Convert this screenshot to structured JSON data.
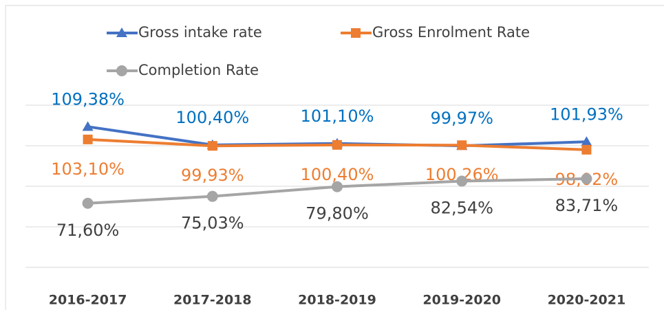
{
  "chart_data": {
    "type": "line",
    "categories": [
      "2016-2017",
      "2017-2018",
      "2018-2019",
      "2019-2020",
      "2020-2021"
    ],
    "series": [
      {
        "name": "Gross intake rate",
        "color": "#4472c4",
        "marker": "triangle",
        "label_color": "#0070c0",
        "values": [
          109.38,
          100.4,
          101.1,
          99.97,
          101.93
        ],
        "value_labels": [
          "109,38%",
          "100,40%",
          "101,10%",
          "99,97%",
          "101,93%"
        ]
      },
      {
        "name": "Gross Enrolment Rate",
        "color": "#ed7d31",
        "marker": "square",
        "label_color": "#ed7d31",
        "values": [
          103.1,
          99.93,
          100.4,
          100.26,
          98.02
        ],
        "value_labels": [
          "103,10%",
          "99,93%",
          "100,40%",
          "100,26%",
          "98,02%"
        ]
      },
      {
        "name": "Completion Rate",
        "color": "#a5a5a5",
        "marker": "circle",
        "label_color": "#404040",
        "values": [
          71.6,
          75.03,
          79.8,
          82.54,
          83.71
        ],
        "value_labels": [
          "71,60%",
          "75,03%",
          "79,80%",
          "82,54%",
          "83,71%"
        ]
      }
    ],
    "ylim": [
      40,
      120
    ],
    "yticks": [
      40,
      60,
      80,
      100,
      120
    ],
    "grid": true
  }
}
